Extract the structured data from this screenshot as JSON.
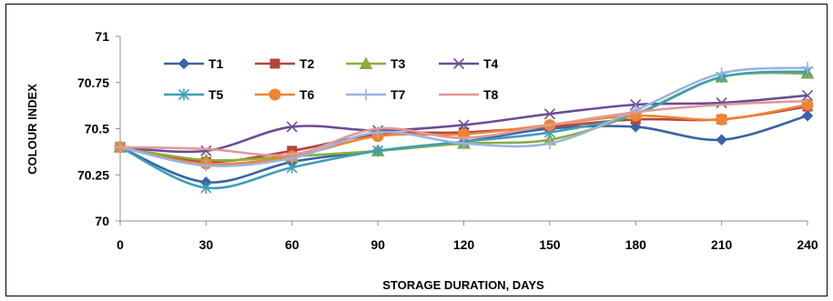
{
  "chart_data": {
    "type": "line",
    "title": "",
    "xlabel": "STORAGE DURATION, DAYS",
    "ylabel": "COLOUR INDEX",
    "x": [
      0,
      30,
      60,
      90,
      120,
      150,
      180,
      210,
      240
    ],
    "x_tick_labels": [
      "0",
      "30",
      "60",
      "90",
      "120",
      "150",
      "180",
      "210",
      "240"
    ],
    "ylim": [
      70,
      71
    ],
    "y_ticks": [
      70,
      70.25,
      70.5,
      70.75,
      71
    ],
    "y_tick_labels": [
      "70",
      "70.25",
      "70.5",
      "70.75",
      "71"
    ],
    "grid": false,
    "smooth": true,
    "legend": "top-left (inside plot)",
    "series": [
      {
        "name": "T1",
        "color": "#3A62A6",
        "marker": "diamond",
        "values": [
          70.4,
          70.21,
          70.32,
          70.38,
          70.43,
          70.5,
          70.51,
          70.44,
          70.57
        ]
      },
      {
        "name": "T2",
        "color": "#B6433D",
        "marker": "square",
        "values": [
          70.4,
          70.32,
          70.38,
          70.47,
          70.48,
          70.51,
          70.55,
          70.55,
          70.62
        ]
      },
      {
        "name": "T3",
        "color": "#8AAD3F",
        "marker": "triangle",
        "values": [
          70.4,
          70.33,
          70.35,
          70.38,
          70.42,
          70.44,
          70.58,
          70.78,
          70.8
        ]
      },
      {
        "name": "T4",
        "color": "#6B4C94",
        "marker": "x",
        "values": [
          70.4,
          70.38,
          70.51,
          70.49,
          70.52,
          70.58,
          70.63,
          70.64,
          70.68
        ]
      },
      {
        "name": "T5",
        "color": "#3C9FB6",
        "marker": "star",
        "values": [
          70.4,
          70.18,
          70.29,
          70.38,
          70.43,
          70.48,
          70.58,
          70.78,
          70.81
        ]
      },
      {
        "name": "T6",
        "color": "#EE8434",
        "marker": "circle",
        "values": [
          70.4,
          70.31,
          70.35,
          70.46,
          70.47,
          70.52,
          70.57,
          70.55,
          70.63
        ]
      },
      {
        "name": "T7",
        "color": "#98B4E0",
        "marker": "plus",
        "values": [
          70.4,
          70.3,
          70.34,
          70.48,
          70.42,
          70.42,
          70.6,
          70.8,
          70.83
        ]
      },
      {
        "name": "T8",
        "color": "#DE9A98",
        "marker": "none",
        "values": [
          70.4,
          70.39,
          70.36,
          70.5,
          70.45,
          70.52,
          70.59,
          70.63,
          70.65
        ]
      }
    ]
  }
}
